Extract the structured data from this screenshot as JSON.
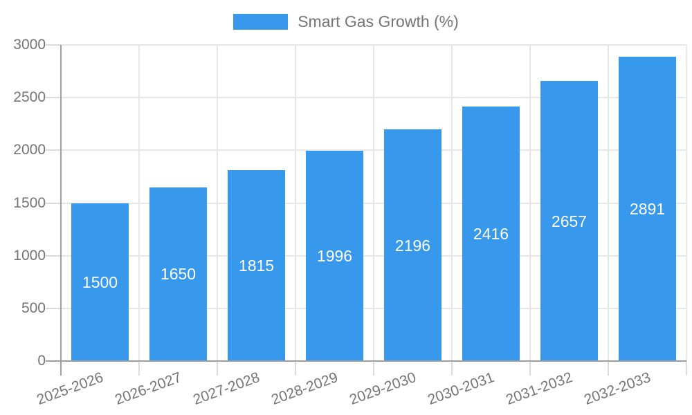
{
  "chart_data": {
    "type": "bar",
    "title": "",
    "legend_label": "Smart Gas Growth (%)",
    "legend_position": "top-center",
    "categories": [
      "2025-2026",
      "2026-2027",
      "2027-2028",
      "2028-2029",
      "2029-2030",
      "2030-2031",
      "2031-2032",
      "2032-2033"
    ],
    "values": [
      1500,
      1650,
      1815,
      1996,
      2196,
      2416,
      2657,
      2891
    ],
    "xlabel": "",
    "ylabel": "",
    "ylim": [
      0,
      3000
    ],
    "yticks": [
      0,
      500,
      1000,
      1500,
      2000,
      2500,
      3000
    ],
    "grid": true,
    "bar_value_labels_shown": true,
    "colors": {
      "bar": "#3898EC",
      "gridline": "#E7E7E7",
      "axis_line": "#9E9E9E",
      "tick_line": "#DCDCDC",
      "axis_text": "#757575",
      "value_text": "#FFFFFF",
      "background": "#FFFFFF"
    }
  }
}
